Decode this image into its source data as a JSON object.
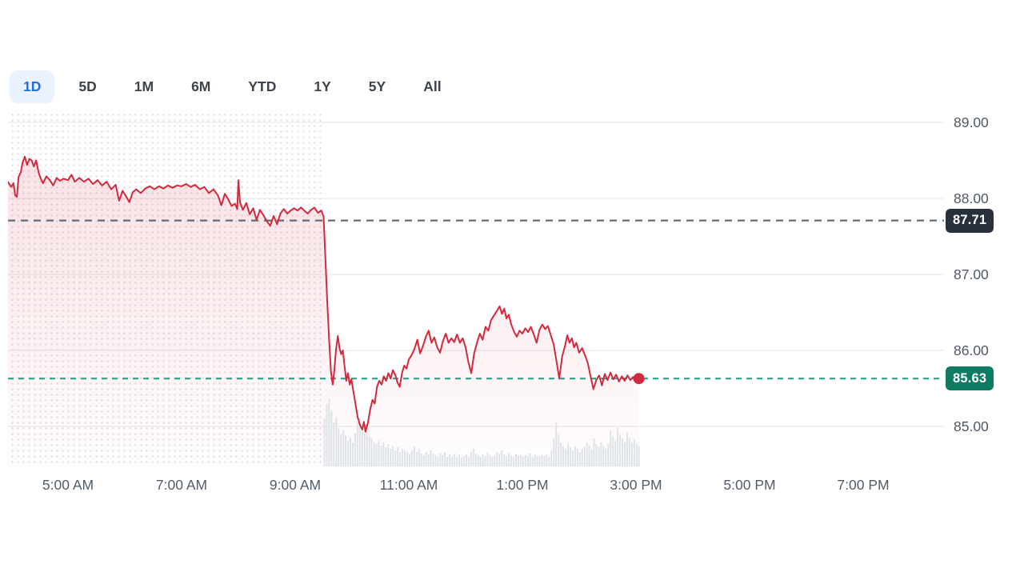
{
  "tabs": {
    "items": [
      {
        "label": "1D",
        "active": true
      },
      {
        "label": "5D",
        "active": false
      },
      {
        "label": "1M",
        "active": false
      },
      {
        "label": "6M",
        "active": false
      },
      {
        "label": "YTD",
        "active": false
      },
      {
        "label": "1Y",
        "active": false
      },
      {
        "label": "5Y",
        "active": false
      },
      {
        "label": "All",
        "active": false
      }
    ]
  },
  "chart_data": {
    "type": "line",
    "title": "Intraday (1D) stock price chart",
    "legend_position": "none",
    "grid": true,
    "x_axis": {
      "labels": [
        "5:00 AM",
        "7:00 AM",
        "9:00 AM",
        "11:00 AM",
        "1:00 PM",
        "3:00 PM",
        "5:00 PM",
        "7:00 PM"
      ],
      "hours": [
        5,
        7,
        9,
        11,
        13,
        15,
        17,
        19
      ],
      "range_hours": [
        3.94,
        20.42
      ]
    },
    "y_axis": {
      "labels": [
        "89.00",
        "88.00",
        "87.00",
        "86.00",
        "85.00"
      ],
      "values": [
        89,
        88,
        87,
        86,
        85
      ],
      "range": [
        84.47,
        89.14
      ]
    },
    "previous_close": {
      "value": 87.71,
      "label": "87.71"
    },
    "current_price": {
      "value": 85.63,
      "label": "85.63"
    },
    "market_open_hour": 9.5,
    "session_start_hour": 3.94,
    "session_end_hour": 15.05,
    "colors": {
      "line": "#d2293d",
      "gridline": "#e8eaed",
      "volume": "#dee3e8",
      "prev_close_line": "#646e78",
      "current_line": "#2f9e8a",
      "prev_close_badge": "#28313b",
      "current_badge": "#0d7c62",
      "active_tab": "#1e6de6",
      "active_tab_bg": "#e9f2fd"
    },
    "series": [
      [
        3.94,
        88.22
      ],
      [
        4.0,
        88.15
      ],
      [
        4.04,
        88.2
      ],
      [
        4.07,
        88.04
      ],
      [
        4.1,
        88.02
      ],
      [
        4.13,
        88.28
      ],
      [
        4.17,
        88.35
      ],
      [
        4.2,
        88.47
      ],
      [
        4.24,
        88.55
      ],
      [
        4.28,
        88.44
      ],
      [
        4.32,
        88.52
      ],
      [
        4.36,
        88.5
      ],
      [
        4.4,
        88.42
      ],
      [
        4.44,
        88.5
      ],
      [
        4.48,
        88.35
      ],
      [
        4.52,
        88.26
      ],
      [
        4.56,
        88.2
      ],
      [
        4.62,
        88.29
      ],
      [
        4.68,
        88.24
      ],
      [
        4.74,
        88.17
      ],
      [
        4.8,
        88.27
      ],
      [
        4.86,
        88.23
      ],
      [
        4.92,
        88.26
      ],
      [
        5.0,
        88.24
      ],
      [
        5.06,
        88.31
      ],
      [
        5.12,
        88.22
      ],
      [
        5.2,
        88.27
      ],
      [
        5.28,
        88.22
      ],
      [
        5.36,
        88.26
      ],
      [
        5.44,
        88.19
      ],
      [
        5.52,
        88.24
      ],
      [
        5.6,
        88.17
      ],
      [
        5.68,
        88.22
      ],
      [
        5.76,
        88.12
      ],
      [
        5.84,
        88.18
      ],
      [
        5.9,
        87.97
      ],
      [
        5.96,
        88.1
      ],
      [
        6.02,
        88.03
      ],
      [
        6.08,
        87.95
      ],
      [
        6.14,
        88.08
      ],
      [
        6.2,
        88.12
      ],
      [
        6.28,
        88.07
      ],
      [
        6.36,
        88.13
      ],
      [
        6.44,
        88.16
      ],
      [
        6.52,
        88.12
      ],
      [
        6.6,
        88.16
      ],
      [
        6.68,
        88.13
      ],
      [
        6.76,
        88.17
      ],
      [
        6.84,
        88.14
      ],
      [
        6.92,
        88.17
      ],
      [
        7.0,
        88.16
      ],
      [
        7.08,
        88.19
      ],
      [
        7.16,
        88.15
      ],
      [
        7.24,
        88.18
      ],
      [
        7.32,
        88.12
      ],
      [
        7.4,
        88.15
      ],
      [
        7.48,
        88.07
      ],
      [
        7.56,
        88.12
      ],
      [
        7.64,
        88.04
      ],
      [
        7.7,
        87.91
      ],
      [
        7.76,
        88.06
      ],
      [
        7.82,
        87.99
      ],
      [
        7.88,
        87.9
      ],
      [
        7.94,
        87.93
      ],
      [
        7.98,
        87.86
      ],
      [
        8.0,
        88.24
      ],
      [
        8.03,
        87.94
      ],
      [
        8.08,
        87.85
      ],
      [
        8.14,
        87.94
      ],
      [
        8.2,
        87.79
      ],
      [
        8.26,
        87.87
      ],
      [
        8.32,
        87.72
      ],
      [
        8.38,
        87.85
      ],
      [
        8.44,
        87.78
      ],
      [
        8.5,
        87.7
      ],
      [
        8.56,
        87.64
      ],
      [
        8.62,
        87.77
      ],
      [
        8.68,
        87.66
      ],
      [
        8.74,
        87.8
      ],
      [
        8.8,
        87.86
      ],
      [
        8.86,
        87.8
      ],
      [
        8.92,
        87.84
      ],
      [
        8.98,
        87.87
      ],
      [
        9.04,
        87.84
      ],
      [
        9.1,
        87.88
      ],
      [
        9.16,
        87.84
      ],
      [
        9.22,
        87.8
      ],
      [
        9.28,
        87.85
      ],
      [
        9.34,
        87.88
      ],
      [
        9.4,
        87.81
      ],
      [
        9.46,
        87.84
      ],
      [
        9.5,
        87.76
      ],
      [
        9.53,
        87.25
      ],
      [
        9.56,
        86.7
      ],
      [
        9.6,
        86.1
      ],
      [
        9.63,
        85.72
      ],
      [
        9.66,
        85.55
      ],
      [
        9.69,
        85.75
      ],
      [
        9.72,
        86.02
      ],
      [
        9.75,
        86.19
      ],
      [
        9.78,
        86.03
      ],
      [
        9.81,
        85.95
      ],
      [
        9.84,
        86.0
      ],
      [
        9.87,
        85.78
      ],
      [
        9.9,
        85.6
      ],
      [
        9.93,
        85.7
      ],
      [
        9.96,
        85.55
      ],
      [
        9.99,
        85.62
      ],
      [
        10.02,
        85.48
      ],
      [
        10.06,
        85.3
      ],
      [
        10.1,
        85.12
      ],
      [
        10.14,
        85.02
      ],
      [
        10.18,
        84.96
      ],
      [
        10.21,
        85.06
      ],
      [
        10.24,
        84.93
      ],
      [
        10.28,
        85.05
      ],
      [
        10.32,
        85.22
      ],
      [
        10.36,
        85.35
      ],
      [
        10.4,
        85.3
      ],
      [
        10.44,
        85.52
      ],
      [
        10.48,
        85.6
      ],
      [
        10.52,
        85.55
      ],
      [
        10.56,
        85.66
      ],
      [
        10.6,
        85.6
      ],
      [
        10.64,
        85.7
      ],
      [
        10.68,
        85.63
      ],
      [
        10.72,
        85.74
      ],
      [
        10.76,
        85.68
      ],
      [
        10.8,
        85.58
      ],
      [
        10.84,
        85.52
      ],
      [
        10.88,
        85.7
      ],
      [
        10.92,
        85.8
      ],
      [
        10.96,
        85.76
      ],
      [
        11.0,
        85.88
      ],
      [
        11.05,
        85.94
      ],
      [
        11.1,
        86.02
      ],
      [
        11.15,
        86.14
      ],
      [
        11.2,
        85.96
      ],
      [
        11.25,
        86.06
      ],
      [
        11.3,
        86.18
      ],
      [
        11.35,
        86.26
      ],
      [
        11.4,
        86.1
      ],
      [
        11.45,
        86.17
      ],
      [
        11.5,
        86.04
      ],
      [
        11.55,
        85.97
      ],
      [
        11.6,
        86.12
      ],
      [
        11.65,
        86.22
      ],
      [
        11.7,
        86.1
      ],
      [
        11.75,
        86.16
      ],
      [
        11.8,
        86.11
      ],
      [
        11.85,
        86.21
      ],
      [
        11.9,
        86.1
      ],
      [
        11.95,
        86.16
      ],
      [
        12.0,
        86.04
      ],
      [
        12.05,
        85.84
      ],
      [
        12.1,
        85.7
      ],
      [
        12.15,
        85.96
      ],
      [
        12.2,
        86.1
      ],
      [
        12.25,
        86.22
      ],
      [
        12.3,
        86.14
      ],
      [
        12.35,
        86.31
      ],
      [
        12.4,
        86.26
      ],
      [
        12.45,
        86.4
      ],
      [
        12.5,
        86.46
      ],
      [
        12.55,
        86.52
      ],
      [
        12.6,
        86.58
      ],
      [
        12.64,
        86.48
      ],
      [
        12.68,
        86.55
      ],
      [
        12.72,
        86.42
      ],
      [
        12.76,
        86.47
      ],
      [
        12.8,
        86.35
      ],
      [
        12.85,
        86.25
      ],
      [
        12.9,
        86.18
      ],
      [
        12.95,
        86.26
      ],
      [
        13.0,
        86.22
      ],
      [
        13.05,
        86.29
      ],
      [
        13.1,
        86.24
      ],
      [
        13.15,
        86.31
      ],
      [
        13.2,
        86.21
      ],
      [
        13.25,
        86.1
      ],
      [
        13.3,
        86.27
      ],
      [
        13.35,
        86.34
      ],
      [
        13.4,
        86.28
      ],
      [
        13.45,
        86.32
      ],
      [
        13.5,
        86.2
      ],
      [
        13.55,
        86.08
      ],
      [
        13.6,
        85.86
      ],
      [
        13.65,
        85.63
      ],
      [
        13.7,
        85.92
      ],
      [
        13.75,
        86.06
      ],
      [
        13.79,
        86.2
      ],
      [
        13.83,
        86.1
      ],
      [
        13.87,
        86.16
      ],
      [
        13.91,
        86.04
      ],
      [
        13.95,
        86.1
      ],
      [
        14.0,
        85.97
      ],
      [
        14.05,
        86.03
      ],
      [
        14.1,
        85.94
      ],
      [
        14.15,
        85.84
      ],
      [
        14.2,
        85.66
      ],
      [
        14.25,
        85.49
      ],
      [
        14.3,
        85.61
      ],
      [
        14.35,
        85.67
      ],
      [
        14.4,
        85.54
      ],
      [
        14.45,
        85.69
      ],
      [
        14.5,
        85.61
      ],
      [
        14.55,
        85.71
      ],
      [
        14.6,
        85.62
      ],
      [
        14.65,
        85.68
      ],
      [
        14.7,
        85.59
      ],
      [
        14.75,
        85.66
      ],
      [
        14.8,
        85.6
      ],
      [
        14.85,
        85.67
      ],
      [
        14.9,
        85.61
      ],
      [
        14.95,
        85.65
      ],
      [
        15.0,
        85.6
      ],
      [
        15.05,
        85.63
      ]
    ],
    "volume": {
      "start_hour": 9.5,
      "end_hour": 15.08,
      "heights": [
        60,
        78,
        85,
        70,
        55,
        62,
        48,
        40,
        45,
        38,
        32,
        36,
        30,
        42,
        55,
        60,
        48,
        52,
        44,
        38,
        35,
        30,
        28,
        32,
        26,
        30,
        24,
        28,
        22,
        25,
        20,
        24,
        18,
        22,
        20,
        18,
        16,
        20,
        25,
        18,
        22,
        16,
        14,
        18,
        15,
        20,
        16,
        14,
        12,
        16,
        14,
        18,
        12,
        15,
        13,
        16,
        12,
        14,
        11,
        13,
        15,
        12,
        18,
        22,
        16,
        14,
        12,
        15,
        13,
        17,
        14,
        12,
        14,
        18,
        16,
        20,
        15,
        13,
        16,
        14,
        12,
        15,
        13,
        14,
        12,
        14,
        13,
        16,
        12,
        15,
        13,
        12,
        14,
        13,
        15,
        12,
        20,
        35,
        55,
        40,
        30,
        25,
        22,
        28,
        24,
        20,
        25,
        22,
        18,
        22,
        25,
        30,
        26,
        22,
        35,
        28,
        24,
        30,
        26,
        22,
        28,
        45,
        38,
        32,
        48,
        40,
        35,
        30,
        42,
        36,
        30,
        34,
        28,
        25
      ]
    }
  }
}
